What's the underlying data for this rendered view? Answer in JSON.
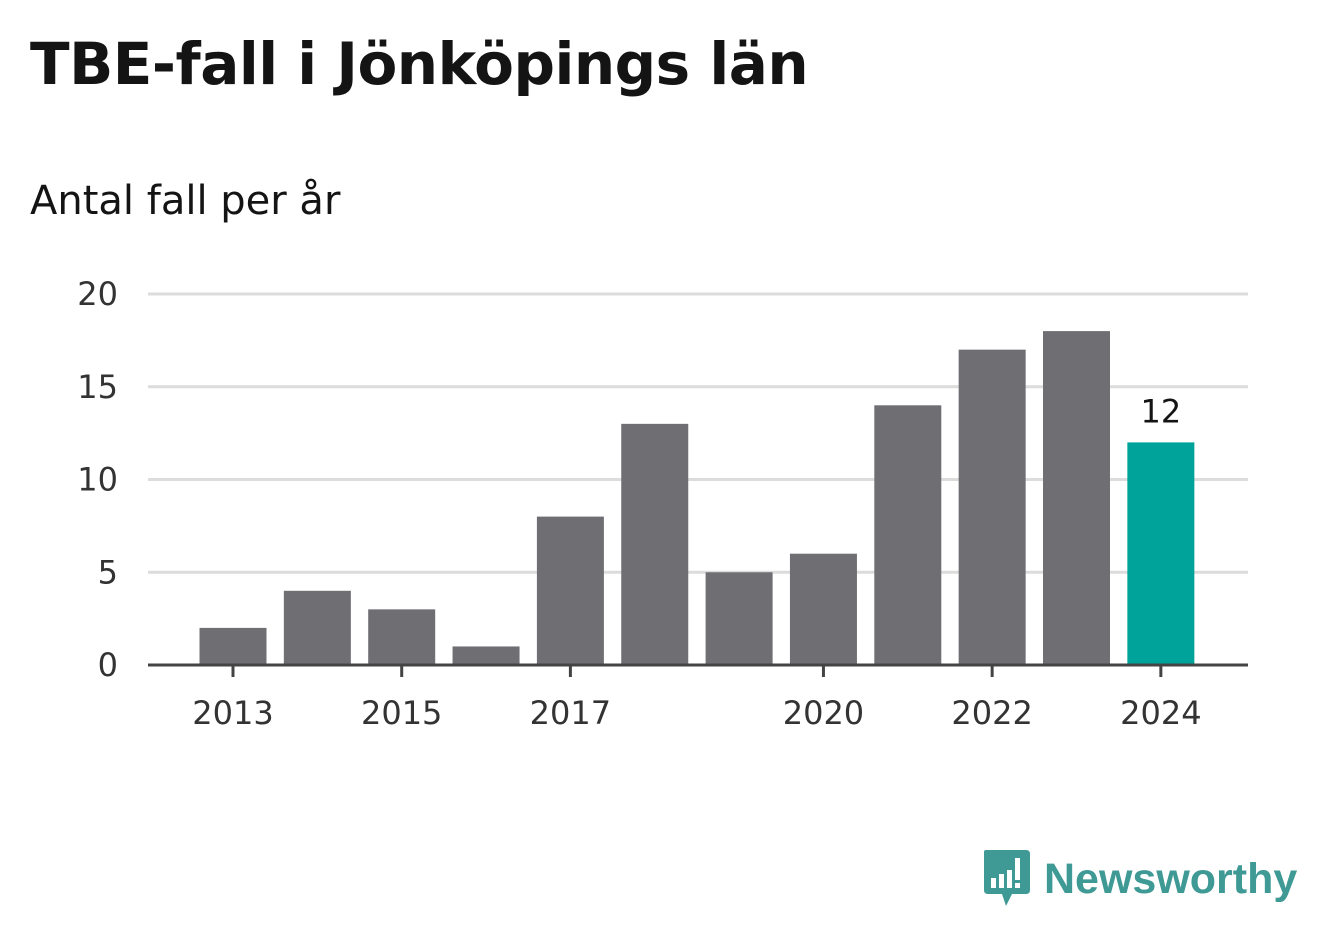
{
  "title": "TBE-fall i Jönköpings län",
  "subtitle": "Antal fall per år",
  "brand": {
    "name": "Newsworthy",
    "logo_icon": "newsworthy-bar-chart-bubble-icon",
    "color": "#3f9994"
  },
  "colors": {
    "bar": "#6f6e73",
    "highlight": "#00a39a",
    "grid": "#dcdcdc",
    "axis": "#444444"
  },
  "chart_data": {
    "type": "bar",
    "title": "TBE-fall i Jönköpings län",
    "subtitle": "Antal fall per år",
    "xlabel": "",
    "ylabel": "",
    "categories": [
      "2013",
      "2014",
      "2015",
      "2016",
      "2017",
      "2018",
      "2019",
      "2020",
      "2021",
      "2022",
      "2023",
      "2024"
    ],
    "x_tick_labels": [
      "2013",
      "2015",
      "2017",
      "2020",
      "2022",
      "2024"
    ],
    "values": [
      2,
      4,
      3,
      1,
      8,
      13,
      5,
      6,
      14,
      17,
      18,
      12
    ],
    "ylim": [
      0,
      20
    ],
    "y_ticks": [
      0,
      5,
      10,
      15,
      20
    ],
    "grid": true,
    "highlighted_category": "2024",
    "data_labels": [
      {
        "category": "2024",
        "text": "12"
      }
    ]
  }
}
